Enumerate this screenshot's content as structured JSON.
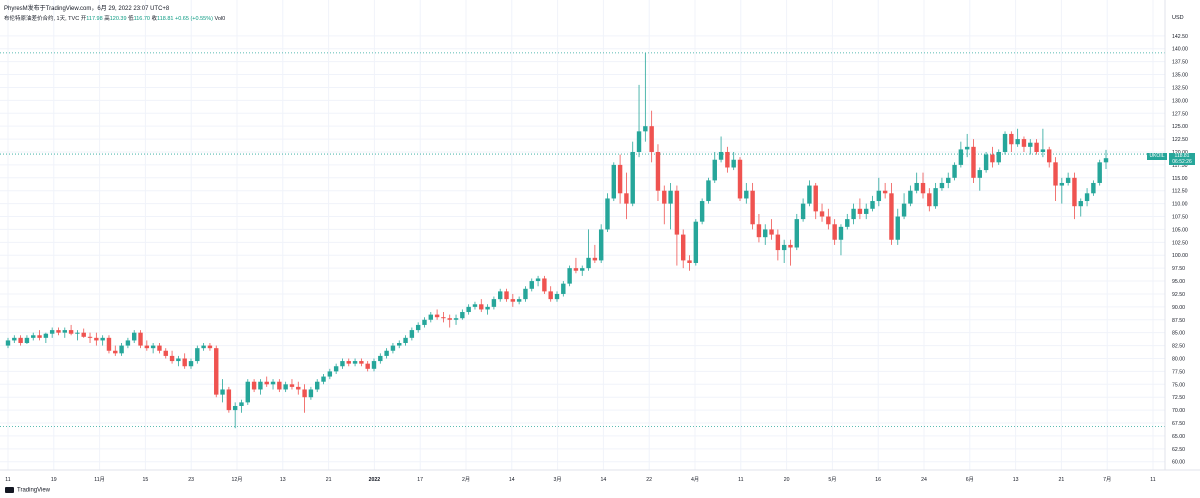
{
  "header": {
    "author": "PhyresM发布于TradingView.com，6月 29, 2022 23:07 UTC+8",
    "title": "布伦特原油差价合约, 1天, TVC",
    "open_label": "开",
    "open": "117.98",
    "high_label": "高",
    "high": "120.39",
    "low_label": "低",
    "low": "116.70",
    "close_label": "收",
    "close": "118.81",
    "change": "+0.65 (+0.55%)",
    "vol_label": "Vol0"
  },
  "price_axis": {
    "currency": "USD",
    "labels": [
      "142.50",
      "140.00",
      "137.50",
      "135.00",
      "132.50",
      "130.00",
      "127.50",
      "125.00",
      "122.50",
      "120.00",
      "117.50",
      "115.00",
      "112.50",
      "110.00",
      "107.50",
      "105.00",
      "102.50",
      "100.00",
      "97.50",
      "95.00",
      "92.50",
      "90.00",
      "87.50",
      "85.00",
      "82.50",
      "80.00",
      "77.50",
      "75.00",
      "72.50",
      "70.00",
      "67.50",
      "65.00",
      "62.50",
      "60.00"
    ]
  },
  "time_axis": {
    "labels": [
      "11",
      "19",
      "11月",
      "15",
      "23",
      "12月",
      "13",
      "21",
      "2022",
      "17",
      "2月",
      "14",
      "3月",
      "14",
      "22",
      "4月",
      "11",
      "20",
      "5月",
      "16",
      "24",
      "6月",
      "13",
      "21",
      "7月",
      "11"
    ]
  },
  "current_price": {
    "symbol": "UKOIL",
    "value": "118.81",
    "countdown": "06:52:26"
  },
  "footer": {
    "brand": "TradingView"
  },
  "colors": {
    "up": "#26a69a",
    "down": "#ef5350",
    "grid": "#f0f3fa",
    "dotted": "#26a69a"
  },
  "chart_data": {
    "type": "candlestick",
    "title": "布伦特原油差价合约, 1天, TVC",
    "ylabel": "USD",
    "ylim": [
      58,
      145
    ],
    "dotted_levels": [
      139.2,
      119.6,
      66.8
    ],
    "ohlc": [
      [
        82.5,
        84,
        82,
        83.5
      ],
      [
        83.5,
        84.5,
        83,
        84
      ],
      [
        84,
        84.5,
        82.5,
        83
      ],
      [
        83,
        84.5,
        82.8,
        84
      ],
      [
        84,
        85,
        83.5,
        84.5
      ],
      [
        84.5,
        85.5,
        83.5,
        84
      ],
      [
        84,
        85,
        83,
        84.8
      ],
      [
        84.8,
        86,
        84,
        85.5
      ],
      [
        85.5,
        86,
        84.5,
        85
      ],
      [
        85,
        86,
        84,
        85.5
      ],
      [
        85.5,
        86.5,
        84.5,
        84.8
      ],
      [
        84.8,
        85.5,
        83.5,
        85
      ],
      [
        85,
        85.8,
        84,
        84.2
      ],
      [
        84.2,
        85,
        83,
        84
      ],
      [
        84,
        85,
        82.5,
        83.5
      ],
      [
        83.5,
        84.5,
        82.5,
        84
      ],
      [
        84,
        84.5,
        81,
        81.5
      ],
      [
        81.5,
        82.5,
        80.5,
        81
      ],
      [
        81,
        83,
        80.5,
        82.5
      ],
      [
        82.5,
        84,
        82,
        83.5
      ],
      [
        83.5,
        85.5,
        83,
        85
      ],
      [
        85,
        85.5,
        82,
        82.5
      ],
      [
        82.5,
        83.5,
        81.5,
        82
      ],
      [
        82,
        83,
        81,
        82.5
      ],
      [
        82.5,
        83,
        81,
        81.5
      ],
      [
        81.5,
        82,
        80,
        80.5
      ],
      [
        80.5,
        81.5,
        79,
        79.5
      ],
      [
        79.5,
        80.5,
        78.5,
        80
      ],
      [
        80,
        81,
        78,
        78.5
      ],
      [
        78.5,
        80,
        78,
        79.5
      ],
      [
        79.5,
        82.5,
        79,
        82
      ],
      [
        82,
        83,
        81.5,
        82.5
      ],
      [
        82.5,
        83,
        81.5,
        82
      ],
      [
        82,
        82.5,
        72.5,
        73
      ],
      [
        73,
        76,
        71.5,
        74
      ],
      [
        74,
        74.5,
        69.5,
        70
      ],
      [
        70,
        71.5,
        66.5,
        70.8
      ],
      [
        70.8,
        72,
        69.5,
        71.5
      ],
      [
        71.5,
        76,
        71,
        75.5
      ],
      [
        75.5,
        76,
        73.5,
        74
      ],
      [
        74,
        76,
        73,
        75.5
      ],
      [
        75.5,
        76.5,
        74.5,
        75
      ],
      [
        75,
        76,
        74,
        75.5
      ],
      [
        75.5,
        76,
        73.5,
        74
      ],
      [
        74,
        75.5,
        73.5,
        75
      ],
      [
        75,
        76,
        74,
        74.5
      ],
      [
        74.5,
        75.5,
        73,
        74
      ],
      [
        74,
        75,
        69.5,
        72.5
      ],
      [
        72.5,
        74.5,
        72,
        74
      ],
      [
        74,
        76,
        73.5,
        75.5
      ],
      [
        75.5,
        77,
        75,
        76.5
      ],
      [
        76.5,
        78,
        76,
        77.5
      ],
      [
        77.5,
        79,
        77,
        78.5
      ],
      [
        78.5,
        80,
        78,
        79.5
      ],
      [
        79.5,
        80,
        78.5,
        79
      ],
      [
        79,
        80,
        78.5,
        79.5
      ],
      [
        79.5,
        80,
        78.5,
        79
      ],
      [
        79,
        79.5,
        77.5,
        78
      ],
      [
        78,
        80,
        77.5,
        79.5
      ],
      [
        79.5,
        81,
        79,
        80.5
      ],
      [
        80.5,
        82,
        80,
        81.5
      ],
      [
        81.5,
        83,
        81,
        82.5
      ],
      [
        82.5,
        83.5,
        82,
        83
      ],
      [
        83,
        84.5,
        82.5,
        84
      ],
      [
        84,
        86,
        83.5,
        85.5
      ],
      [
        85.5,
        87,
        85,
        86.5
      ],
      [
        86.5,
        88,
        86,
        87.5
      ],
      [
        87.5,
        89,
        87,
        88.5
      ],
      [
        88.5,
        89.5,
        87.5,
        88
      ],
      [
        88,
        89,
        87,
        87.8
      ],
      [
        87.8,
        88.5,
        86,
        87.5
      ],
      [
        87.5,
        88.5,
        86.5,
        87.8
      ],
      [
        87.8,
        89.5,
        87.5,
        89
      ],
      [
        89,
        90.5,
        88.5,
        90
      ],
      [
        90,
        91,
        89.5,
        90.5
      ],
      [
        90.5,
        91.5,
        89,
        89.5
      ],
      [
        89.5,
        90.5,
        88.5,
        90
      ],
      [
        90,
        92,
        89.5,
        91.5
      ],
      [
        91.5,
        93.5,
        91,
        93
      ],
      [
        93,
        93.5,
        91,
        91.5
      ],
      [
        91.5,
        92.5,
        90,
        91
      ],
      [
        91,
        92,
        90.5,
        91.5
      ],
      [
        91.5,
        94,
        91,
        93.5
      ],
      [
        93.5,
        95.5,
        93,
        95
      ],
      [
        95,
        96,
        94,
        95.5
      ],
      [
        95.5,
        96,
        92.5,
        93
      ],
      [
        93,
        94,
        91,
        91.5
      ],
      [
        91.5,
        93,
        91,
        92.5
      ],
      [
        92.5,
        95,
        92,
        94.5
      ],
      [
        94.5,
        98,
        94,
        97.5
      ],
      [
        97.5,
        99.5,
        96.5,
        97
      ],
      [
        97,
        98,
        96,
        97.5
      ],
      [
        97.5,
        105,
        97,
        99.5
      ],
      [
        99.5,
        102,
        98.5,
        99
      ],
      [
        99,
        106,
        98.5,
        105
      ],
      [
        105,
        112,
        104.5,
        111
      ],
      [
        111,
        118,
        110.5,
        117.5
      ],
      [
        117.5,
        119.5,
        110,
        112
      ],
      [
        112,
        116,
        107,
        110
      ],
      [
        110,
        122,
        109.5,
        120
      ],
      [
        120,
        133,
        119,
        124
      ],
      [
        124,
        139.2,
        122,
        125
      ],
      [
        125,
        128,
        118,
        120
      ],
      [
        120,
        121.5,
        110.5,
        112.5
      ],
      [
        112.5,
        113.5,
        106,
        110
      ],
      [
        110,
        114,
        105,
        112.5
      ],
      [
        112.5,
        113.5,
        98,
        104
      ],
      [
        104,
        105,
        97.5,
        99
      ],
      [
        99,
        100,
        97,
        98.5
      ],
      [
        98.5,
        107,
        98,
        106.5
      ],
      [
        106.5,
        111,
        106,
        110.5
      ],
      [
        110.5,
        115,
        110,
        114.5
      ],
      [
        114.5,
        120,
        114,
        118.5
      ],
      [
        118.5,
        123,
        118,
        120
      ],
      [
        120,
        121,
        116,
        117
      ],
      [
        117,
        120,
        116.5,
        118.5
      ],
      [
        118.5,
        119,
        110.5,
        111
      ],
      [
        111,
        114,
        110,
        112.5
      ],
      [
        112.5,
        114,
        105,
        106
      ],
      [
        106,
        108,
        102.5,
        103.5
      ],
      [
        103.5,
        106,
        102,
        105
      ],
      [
        105,
        107,
        103,
        104
      ],
      [
        104,
        105,
        99,
        101
      ],
      [
        101,
        103,
        98.5,
        102
      ],
      [
        102,
        103,
        98,
        101.5
      ],
      [
        101.5,
        108,
        101,
        107
      ],
      [
        107,
        111,
        106.5,
        110
      ],
      [
        110,
        114.5,
        109.5,
        113.5
      ],
      [
        113.5,
        114,
        107,
        108.5
      ],
      [
        108.5,
        110,
        106.5,
        107.5
      ],
      [
        107.5,
        109,
        105,
        106
      ],
      [
        106,
        107,
        102,
        103
      ],
      [
        103,
        106,
        100,
        105.5
      ],
      [
        105.5,
        108,
        105,
        107
      ],
      [
        107,
        110,
        106,
        109
      ],
      [
        109,
        111,
        107,
        108
      ],
      [
        108,
        110,
        107,
        109
      ],
      [
        109,
        111.5,
        108.5,
        110.5
      ],
      [
        110.5,
        115,
        109.5,
        112.5
      ],
      [
        112.5,
        114,
        111,
        112
      ],
      [
        112,
        114,
        102,
        103
      ],
      [
        103,
        109,
        102,
        107.5
      ],
      [
        107.5,
        112,
        107,
        110
      ],
      [
        110,
        113.5,
        109.5,
        112.5
      ],
      [
        112.5,
        116,
        112,
        114
      ],
      [
        114,
        116,
        111,
        112
      ],
      [
        112,
        113,
        108.5,
        109.5
      ],
      [
        109.5,
        114,
        109,
        113
      ],
      [
        113,
        115,
        112.5,
        114
      ],
      [
        114,
        116,
        113,
        115
      ],
      [
        115,
        118,
        114.5,
        117.5
      ],
      [
        117.5,
        122,
        117,
        120.5
      ],
      [
        120.5,
        123.5,
        119,
        121
      ],
      [
        121,
        122.5,
        114,
        115
      ],
      [
        115,
        117,
        112.5,
        116.5
      ],
      [
        116.5,
        120,
        116,
        119.5
      ],
      [
        119.5,
        121,
        117,
        118
      ],
      [
        118,
        120.5,
        117.5,
        120
      ],
      [
        120,
        124,
        119.5,
        123.5
      ],
      [
        123.5,
        124,
        120,
        121.5
      ],
      [
        121.5,
        124.5,
        121,
        122.5
      ],
      [
        122.5,
        123,
        120,
        121
      ],
      [
        121,
        122.5,
        119.5,
        121.8
      ],
      [
        121.8,
        122.5,
        119.5,
        120
      ],
      [
        120,
        124.5,
        119,
        120.5
      ],
      [
        120.5,
        121,
        117,
        118
      ],
      [
        118,
        119,
        110.5,
        113.5
      ],
      [
        113.5,
        115,
        110,
        114
      ],
      [
        114,
        116,
        113.5,
        115
      ],
      [
        115,
        116,
        107,
        109.5
      ],
      [
        109.5,
        111,
        107.5,
        110.5
      ],
      [
        110.5,
        113,
        109.5,
        112
      ],
      [
        112,
        114.5,
        111.5,
        114
      ],
      [
        114,
        118.5,
        113.5,
        118
      ],
      [
        118,
        120.4,
        116.7,
        118.8
      ]
    ]
  }
}
